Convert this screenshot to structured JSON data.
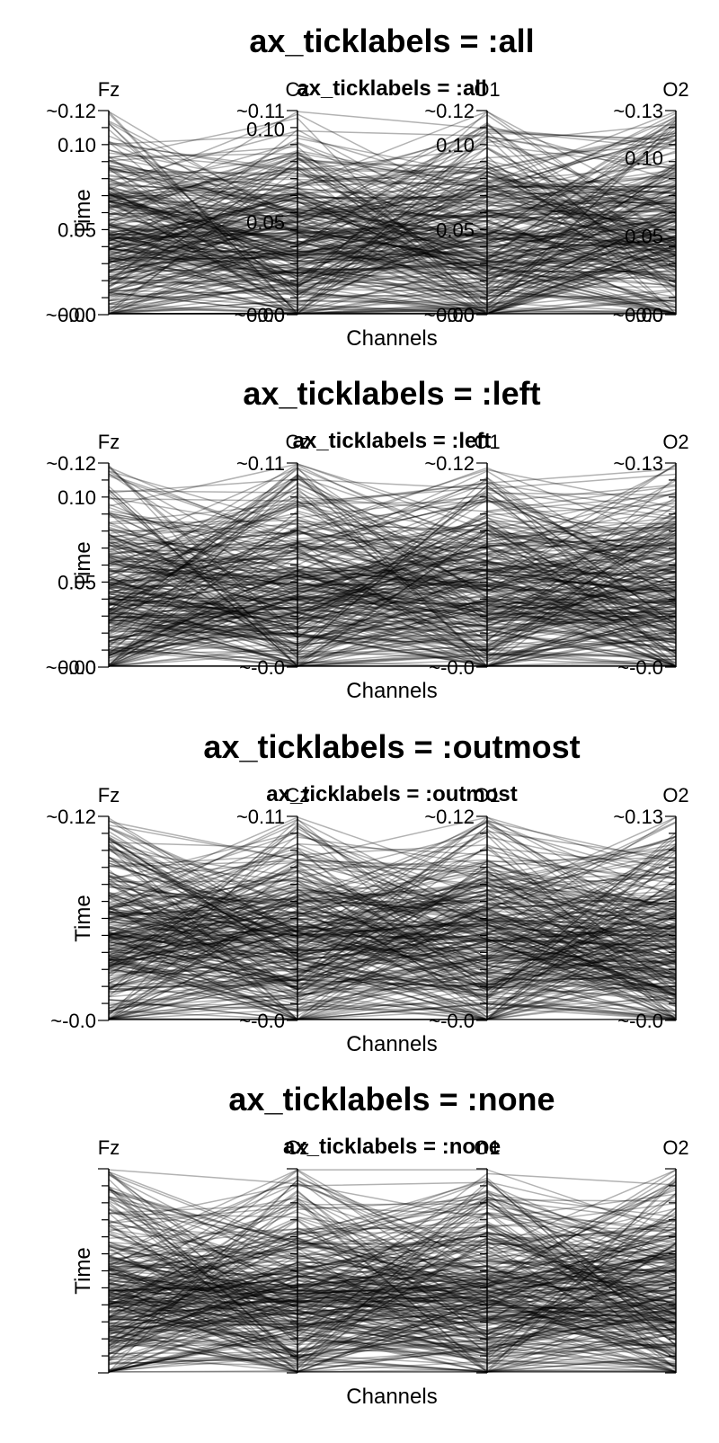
{
  "chart_data": [
    {
      "type": "line",
      "variant": "parallel-coordinates",
      "title": "ax_ticklabels = :all",
      "subtitle": "ax_ticklabels = :all",
      "xlabel": "Channels",
      "ylabel": "Time",
      "channels": [
        "Fz",
        "Cz",
        "O1",
        "O2"
      ],
      "ticklabels_shown": "all",
      "axis_ranges": [
        [
          -0.0,
          0.12
        ],
        [
          -0.0,
          0.11
        ],
        [
          -0.0,
          0.12
        ],
        [
          -0.0,
          0.13
        ]
      ],
      "end_labels": [
        [
          "~−0.0",
          "~0.12"
        ],
        [
          "~−0.0",
          "~0.11"
        ],
        [
          "~−0.0",
          "~0.12"
        ],
        [
          "~−0.0",
          "~0.13"
        ]
      ],
      "tick_labels": [
        [
          "0.00",
          "0.05",
          "0.10"
        ],
        [
          "0.00",
          "0.05",
          "0.10"
        ],
        [
          "0.00",
          "0.05",
          "0.10"
        ],
        [
          "0.00",
          "0.05",
          "0.10"
        ]
      ],
      "line_count": 300,
      "line_color": "#000000"
    },
    {
      "type": "line",
      "variant": "parallel-coordinates",
      "title": "ax_ticklabels = :left",
      "subtitle": "ax_ticklabels = :left",
      "xlabel": "Channels",
      "ylabel": "Time",
      "channels": [
        "Fz",
        "Cz",
        "O1",
        "O2"
      ],
      "ticklabels_shown": "left",
      "axis_ranges": [
        [
          -0.0,
          0.12
        ],
        [
          -0.0,
          0.11
        ],
        [
          -0.0,
          0.12
        ],
        [
          -0.0,
          0.13
        ]
      ],
      "end_labels": [
        [
          "~−0.0",
          "~0.12"
        ],
        [
          "~-0.0",
          "~0.11"
        ],
        [
          "~-0.0",
          "~0.12"
        ],
        [
          "~-0.0",
          "~0.13"
        ]
      ],
      "tick_labels": [
        [
          "0.00",
          "0.05",
          "0.10"
        ],
        [],
        [],
        []
      ],
      "line_count": 300,
      "line_color": "#000000"
    },
    {
      "type": "line",
      "variant": "parallel-coordinates",
      "title": "ax_ticklabels = :outmost",
      "subtitle": "ax_ticklabels = :outmost",
      "xlabel": "Channels",
      "ylabel": "Time",
      "channels": [
        "Fz",
        "Cz",
        "O1",
        "O2"
      ],
      "ticklabels_shown": "outmost",
      "axis_ranges": [
        [
          -0.0,
          0.12
        ],
        [
          -0.0,
          0.11
        ],
        [
          -0.0,
          0.12
        ],
        [
          -0.0,
          0.13
        ]
      ],
      "end_labels": [
        [
          "~-0.0",
          "~0.12"
        ],
        [
          "~-0.0",
          "~0.11"
        ],
        [
          "~-0.0",
          "~0.12"
        ],
        [
          "~-0.0",
          "~0.13"
        ]
      ],
      "tick_labels": [
        [],
        [],
        [],
        []
      ],
      "line_count": 300,
      "line_color": "#000000"
    },
    {
      "type": "line",
      "variant": "parallel-coordinates",
      "title": "ax_ticklabels = :none",
      "subtitle": "ax_ticklabels = :none",
      "xlabel": "Channels",
      "ylabel": "Time",
      "channels": [
        "Fz",
        "Cz",
        "O1",
        "O2"
      ],
      "ticklabels_shown": "none",
      "axis_ranges": [
        [
          -0.0,
          0.12
        ],
        [
          -0.0,
          0.11
        ],
        [
          -0.0,
          0.12
        ],
        [
          -0.0,
          0.13
        ]
      ],
      "end_labels": [
        [],
        [],
        [],
        []
      ],
      "tick_labels": [
        [],
        [],
        [],
        []
      ],
      "line_count": 300,
      "line_color": "#000000"
    }
  ]
}
